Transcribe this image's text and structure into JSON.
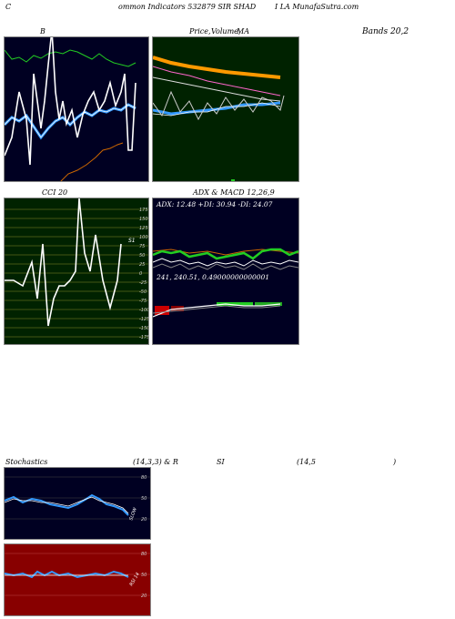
{
  "header": {
    "left_c": "C",
    "left_text": "ommon Indicators 532879 SIR SHAD",
    "right_text": "I LA MunafaSutra.com"
  },
  "panels": {
    "bollinger": {
      "title": "B",
      "title_right": "Bands 20,2"
    },
    "price": {
      "title_a": "Price,",
      "title_b": "Volume,",
      "title_c": "MA"
    },
    "cci": {
      "title": "CCI 20",
      "label": "S1",
      "ticks": [
        "175",
        "150",
        "125",
        "100",
        "75",
        "50",
        "25",
        "0",
        "-25",
        "-50",
        "-75",
        "-100",
        "-125",
        "-150",
        "-175"
      ]
    },
    "adx": {
      "title": "ADX  & MACD 12,26,9",
      "stats": "ADX: 12.48  +DI: 30.94  -DI: 24.07",
      "macd_values": "241,  240.51,  0.49000000000001"
    },
    "stoch": {
      "title": "Stochastics",
      "params": "(14,3,3) & R",
      "ticks": [
        "80",
        "50",
        "20"
      ],
      "label": "SLOW"
    },
    "rsi": {
      "title": "SI",
      "params": "(14,5",
      "close": ")",
      "ticks": [
        "80",
        "50",
        "20"
      ],
      "label": "RSI 14"
    }
  },
  "watermark": "MunafaSutra.com",
  "colors": {
    "navy": "#000022",
    "darkgreen": "#002200",
    "darkred": "#880000",
    "orange": "#ff9900",
    "blue": "#3399ff",
    "green": "#22cc22"
  }
}
